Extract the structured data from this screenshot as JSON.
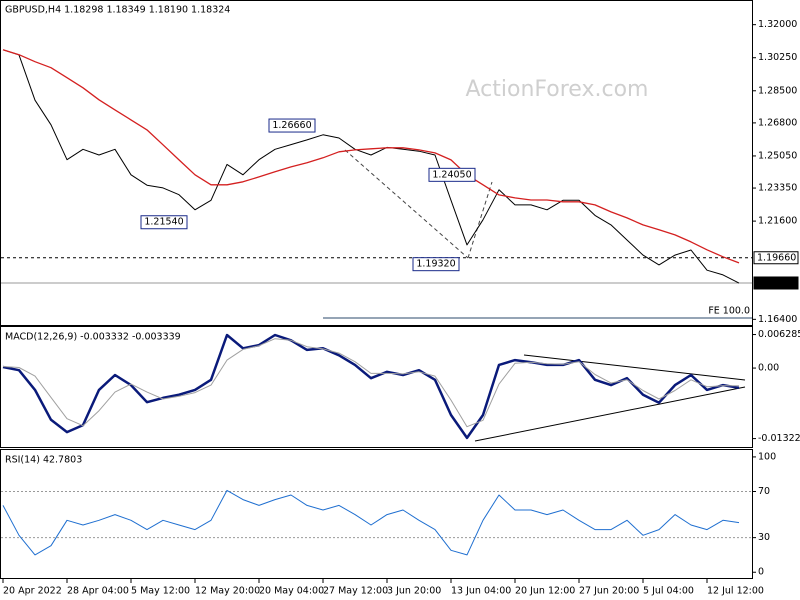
{
  "chart_data": [
    {
      "type": "line",
      "title": "GBPUSD,H4  1.18298 1.18349 1.18190 1.18324",
      "watermark": "ActionForex.com",
      "ylim": [
        1.161,
        1.332
      ],
      "yticks": [
        {
          "value": 1.32,
          "label": "1.32000"
        },
        {
          "value": 1.3025,
          "label": "1.30250"
        },
        {
          "value": 1.285,
          "label": "1.28500"
        },
        {
          "value": 1.268,
          "label": "1.26800"
        },
        {
          "value": 1.2505,
          "label": "1.25050"
        },
        {
          "value": 1.2335,
          "label": "1.23350"
        },
        {
          "value": 1.216,
          "label": "1.21600"
        },
        {
          "value": 1.164,
          "label": "1.16400"
        }
      ],
      "series": [
        {
          "name": "Close",
          "color": "#000000",
          "values": [
            1.3067,
            1.304,
            1.28,
            1.267,
            1.2485,
            1.254,
            1.251,
            1.254,
            1.2405,
            1.235,
            1.2336,
            1.23,
            1.222,
            1.227,
            1.246,
            1.2405,
            1.2485,
            1.254,
            1.2565,
            1.259,
            1.2617,
            1.26,
            1.254,
            1.251,
            1.255,
            1.254,
            1.253,
            1.251,
            1.227,
            1.2034,
            1.2167,
            1.2326,
            1.2246,
            1.2246,
            1.222,
            1.227,
            1.227,
            1.219,
            1.214,
            1.206,
            1.198,
            1.1928,
            1.198,
            1.2007,
            1.19,
            1.1875,
            1.1832
          ]
        },
        {
          "name": "MA",
          "color": "#d42020",
          "values": [
            1.3067,
            1.3041,
            1.3004,
            1.2972,
            1.2919,
            1.2866,
            1.2802,
            1.2749,
            1.2696,
            1.2643,
            1.2564,
            1.2484,
            1.2405,
            1.2352,
            1.2352,
            1.2368,
            1.2394,
            1.2421,
            1.2447,
            1.2469,
            1.2495,
            1.2527,
            1.2537,
            1.2543,
            1.2548,
            1.2548,
            1.2537,
            1.2521,
            1.2484,
            1.2405,
            1.2352,
            1.2299,
            1.2283,
            1.2272,
            1.2272,
            1.2262,
            1.2262,
            1.2246,
            1.2209,
            1.2177,
            1.214,
            1.2114,
            1.2087,
            1.205,
            1.2008,
            1.1971,
            1.1939
          ]
        }
      ],
      "annotations": [
        {
          "value": 1.2666,
          "label": "1.26660",
          "x": 20
        },
        {
          "value": 1.2154,
          "label": "1.21540",
          "x": 12
        },
        {
          "value": 1.2405,
          "label": "1.24050",
          "x": 30
        },
        {
          "value": 1.1932,
          "label": "1.19320",
          "x": 29
        }
      ],
      "levels": [
        {
          "value": 1.1966,
          "label": "1.19660",
          "style": "dashed"
        },
        {
          "value": 1.18324,
          "label": "1.18324",
          "style": "current"
        }
      ],
      "fe_line": {
        "label": "FE 100.0",
        "value": 1.1647,
        "x": 20
      }
    },
    {
      "type": "line",
      "title": "MACD(12,26,9) -0.003332 -0.003339",
      "ylim": [
        -0.0148,
        0.0077
      ],
      "yticks": [
        0.006285,
        {
          "value": 0,
          "label": "0.00"
        },
        -0.013223
      ],
      "series": [
        {
          "name": "MACD",
          "color": "#0a1a7a",
          "values": [
            0.0002,
            -0.0004,
            -0.0041,
            -0.0097,
            -0.012,
            -0.0107,
            -0.0041,
            -0.0013,
            -0.0032,
            -0.0064,
            -0.0056,
            -0.005,
            -0.0041,
            -0.0022,
            0.0062,
            0.0037,
            0.0043,
            0.0062,
            0.0052,
            0.0034,
            0.0037,
            0.0024,
            0.0006,
            -0.0019,
            -0.0007,
            -0.0013,
            -0.0004,
            -0.0022,
            -0.0088,
            -0.0131,
            -0.0088,
            0.0006,
            0.0015,
            0.0011,
            0.0006,
            0.0006,
            0.0015,
            -0.0022,
            -0.0032,
            -0.0019,
            -0.005,
            -0.0065,
            -0.0032,
            -0.0013,
            -0.0041,
            -0.0032,
            -0.0037
          ]
        },
        {
          "name": "Signal",
          "color": "#a0a0a0",
          "values": [
            0.0003,
            0.0001,
            -0.0015,
            -0.0055,
            -0.0095,
            -0.0108,
            -0.008,
            -0.0045,
            -0.003,
            -0.0045,
            -0.0058,
            -0.0053,
            -0.0046,
            -0.0032,
            0.0015,
            0.0035,
            0.0042,
            0.0055,
            0.0052,
            0.004,
            0.0036,
            0.0028,
            0.0012,
            -0.001,
            -0.001,
            -0.0011,
            -0.0007,
            -0.0015,
            -0.006,
            -0.011,
            -0.0098,
            -0.003,
            0.0009,
            0.0011,
            0.0008,
            0.0007,
            0.0012,
            -0.0012,
            -0.0028,
            -0.0022,
            -0.0042,
            -0.0058,
            -0.0042,
            -0.0022,
            -0.0035,
            -0.0033,
            -0.0033
          ]
        }
      ]
    },
    {
      "type": "line",
      "title": "RSI(14) 42.7803",
      "ylim": [
        -5,
        106
      ],
      "yticks": [
        100,
        70,
        30,
        0
      ],
      "levels": [
        70,
        30
      ],
      "series": [
        {
          "name": "RSI",
          "color": "#1f6fd0",
          "values": [
            58,
            32,
            15,
            23,
            45,
            41,
            45,
            50,
            45,
            37,
            45,
            41,
            37,
            45,
            71,
            63,
            58,
            63,
            67,
            58,
            54,
            58,
            50,
            41,
            50,
            54,
            45,
            37,
            19,
            15,
            45,
            67,
            54,
            54,
            50,
            54,
            45,
            37,
            37,
            45,
            32,
            37,
            50,
            41,
            37,
            45,
            43
          ]
        }
      ],
      "xlim": [
        0,
        46
      ],
      "xticks": [
        {
          "value": 0,
          "label": "20 Apr 2022"
        },
        {
          "value": 4,
          "label": "28 Apr 04:00"
        },
        {
          "value": 8,
          "label": "5 May 12:00"
        },
        {
          "value": 12,
          "label": "12 May 20:00"
        },
        {
          "value": 16,
          "label": "20 May 04:00"
        },
        {
          "value": 20,
          "label": "27 May 12:00"
        },
        {
          "value": 24,
          "label": "3 Jun 20:00"
        },
        {
          "value": 28,
          "label": "13 Jun 04:00"
        },
        {
          "value": 32,
          "label": "20 Jun 12:00"
        },
        {
          "value": 36,
          "label": "27 Jun 20:00"
        },
        {
          "value": 40,
          "label": "5 Jul 04:00"
        },
        {
          "value": 44,
          "label": "12 Jul 12:00"
        }
      ]
    }
  ]
}
